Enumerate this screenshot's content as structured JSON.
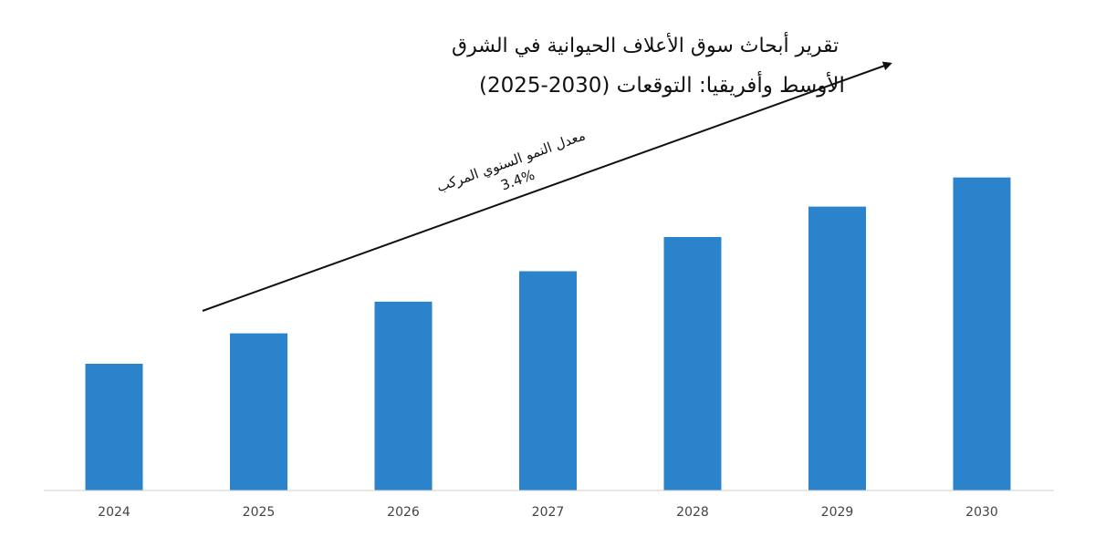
{
  "chart_data": {
    "type": "bar",
    "title_line1": "تقرير أبحاث سوق الأعلاف الحيوانية في الشرق",
    "title_line2": "الأوسط وأفريقيا: التوقعات (2030-2025)",
    "categories": [
      "2024",
      "2025",
      "2026",
      "2027",
      "2028",
      "2029",
      "2030"
    ],
    "values": [
      1.0,
      1.24,
      1.49,
      1.73,
      2.0,
      2.24,
      2.47
    ],
    "ylim": [
      0,
      2.6
    ],
    "xlabel": "",
    "ylabel": "",
    "grid": false,
    "legend": "none",
    "bar_color": "#2a83cb",
    "axis_color": "#cfcfcf",
    "annotation": {
      "line1": "معدل النمو السنوي المركب",
      "line2": "3.4%",
      "arrow": "increasing trend arrow"
    }
  }
}
